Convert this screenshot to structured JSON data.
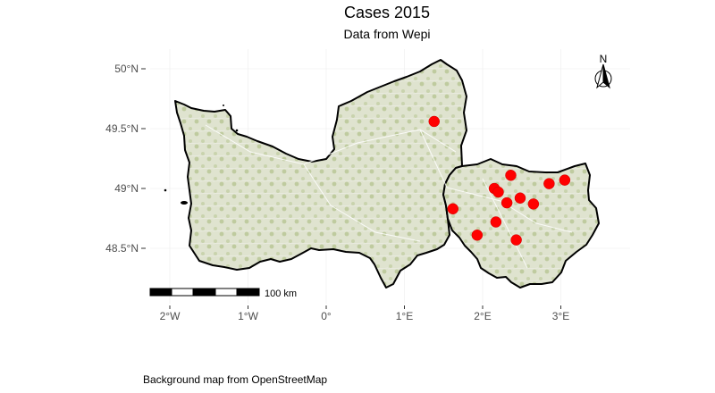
{
  "title": "Cases 2015",
  "subtitle": "Data from Wepi",
  "caption": "Background map from OpenStreetMap",
  "north_arrow_label": "N",
  "scale_bar_label": "100 km",
  "background_tiles": "OpenStreetMap",
  "colors": {
    "land_fill": "#dfe3cf",
    "land_forest": "#b9c79a",
    "roads": "#ffffff",
    "boundary": "#000000",
    "points": "#ff0000",
    "grid": "#ececec"
  },
  "chart_data": {
    "type": "scatter",
    "title": "Cases 2015",
    "subtitle": "Data from Wepi",
    "xlabel": "",
    "ylabel": "",
    "x_ticks": [
      {
        "value": -2,
        "label": "2°W"
      },
      {
        "value": -1,
        "label": "1°W"
      },
      {
        "value": 0,
        "label": "0°"
      },
      {
        "value": 1,
        "label": "1°E"
      },
      {
        "value": 2,
        "label": "2°E"
      },
      {
        "value": 3,
        "label": "3°E"
      }
    ],
    "y_ticks": [
      {
        "value": 48.5,
        "label": "48.5°N"
      },
      {
        "value": 49.0,
        "label": "49°N"
      },
      {
        "value": 49.5,
        "label": "49.5°N"
      },
      {
        "value": 50.0,
        "label": "50°N"
      }
    ],
    "xlim": [
      -2.3,
      3.9
    ],
    "ylim": [
      48.13,
      50.1
    ],
    "grid": true,
    "series": [
      {
        "points": [
          {
            "x": 1.38,
            "y": 49.56
          },
          {
            "x": 2.36,
            "y": 49.11
          },
          {
            "x": 3.05,
            "y": 49.07
          },
          {
            "x": 2.85,
            "y": 49.04
          },
          {
            "x": 2.15,
            "y": 49.0
          },
          {
            "x": 2.2,
            "y": 48.97
          },
          {
            "x": 2.48,
            "y": 48.92
          },
          {
            "x": 2.31,
            "y": 48.88
          },
          {
            "x": 2.65,
            "y": 48.87
          },
          {
            "x": 1.62,
            "y": 48.83
          },
          {
            "x": 2.17,
            "y": 48.72
          },
          {
            "x": 1.93,
            "y": 48.61
          },
          {
            "x": 2.43,
            "y": 48.57
          }
        ]
      }
    ]
  }
}
